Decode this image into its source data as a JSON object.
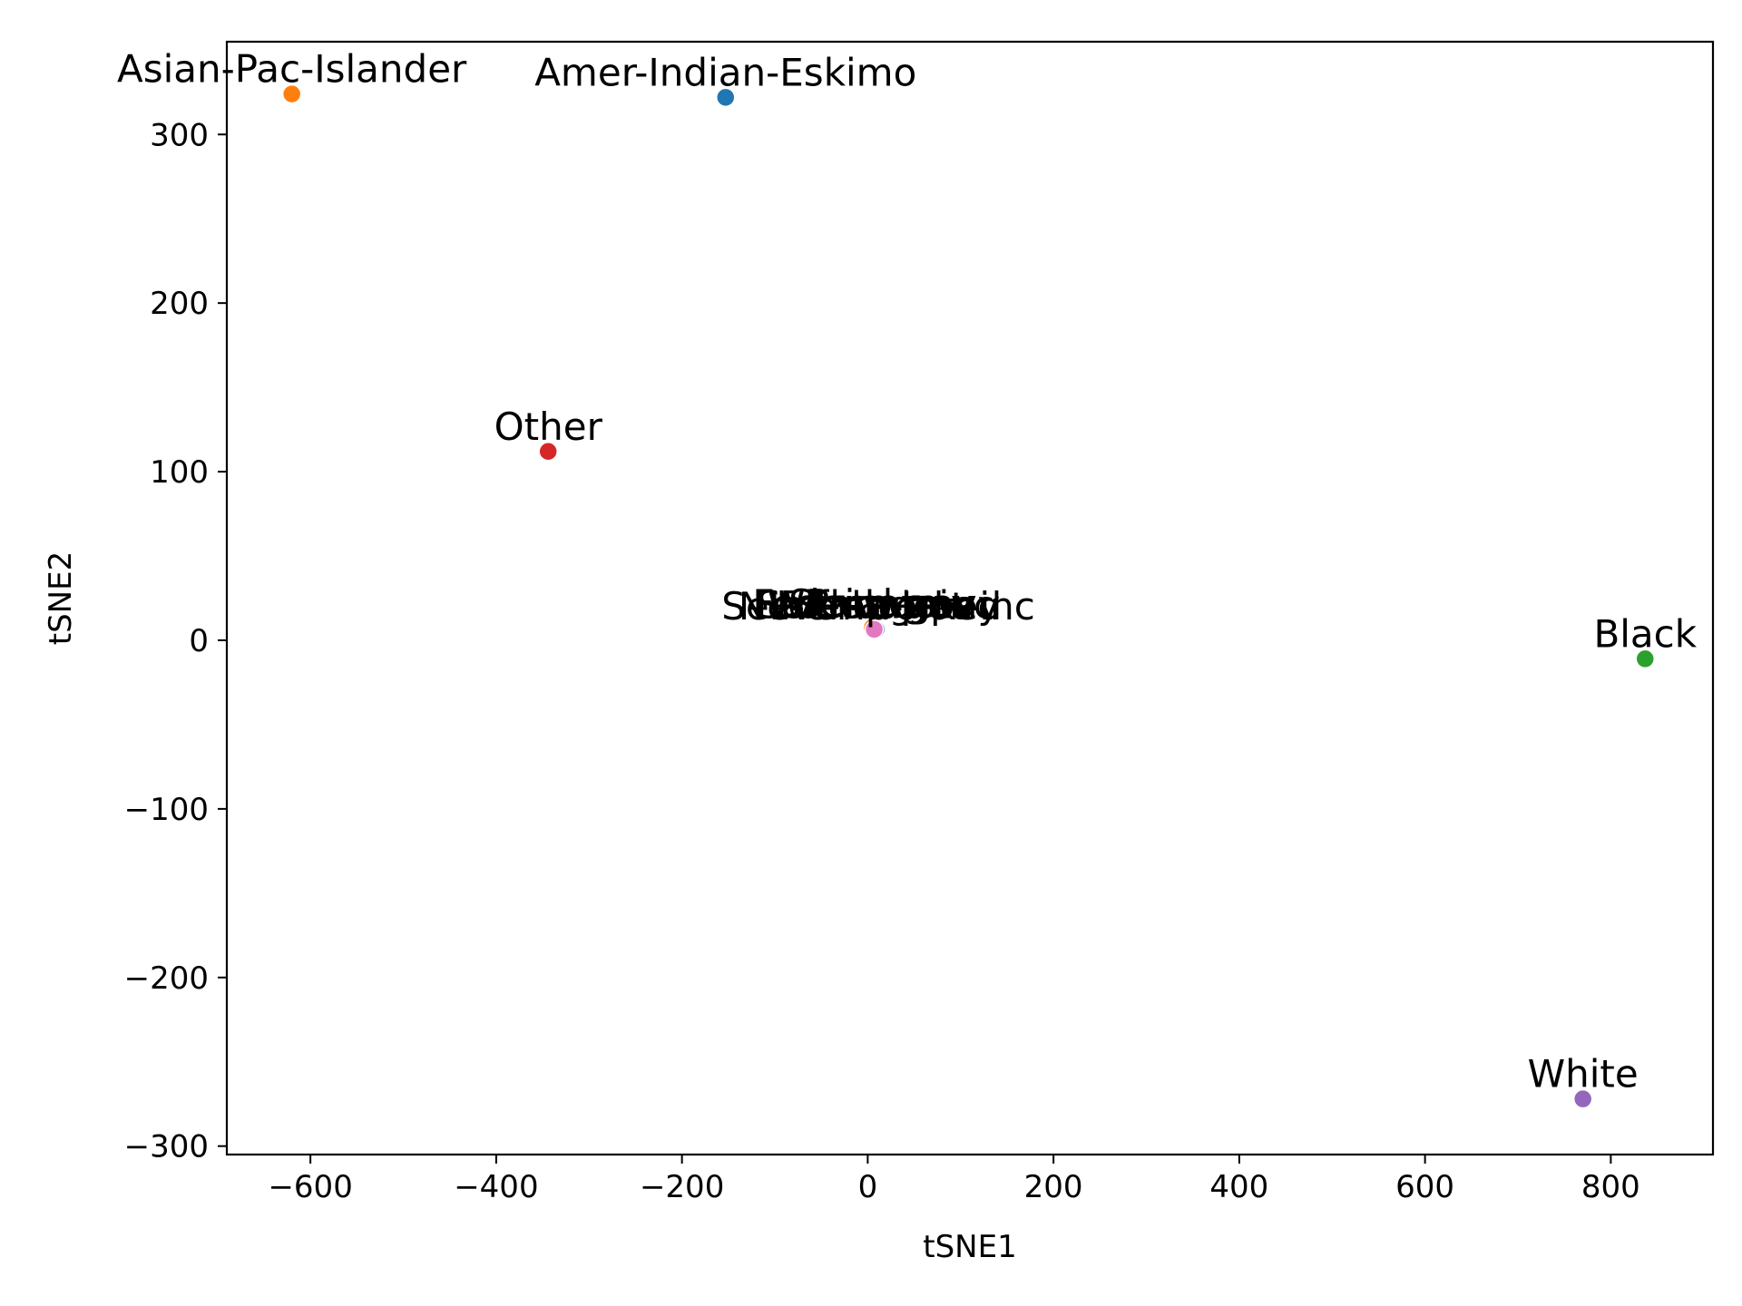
{
  "chart_data": {
    "type": "scatter",
    "title": "",
    "xlabel": "tSNE1",
    "ylabel": "tSNE2",
    "xlim": [
      -690,
      910
    ],
    "ylim": [
      -305,
      355
    ],
    "xticks": [
      -600,
      -400,
      -200,
      0,
      200,
      400,
      600,
      800
    ],
    "yticks": [
      -300,
      -200,
      -100,
      0,
      100,
      200,
      300
    ],
    "xtick_labels": [
      "−600",
      "−400",
      "−200",
      "0",
      "200",
      "400",
      "600",
      "800"
    ],
    "ytick_labels": [
      "−300",
      "−200",
      "−100",
      "0",
      "100",
      "200",
      "300"
    ],
    "grid": false,
    "legend": "none",
    "points": [
      {
        "label": "Amer-Indian-Eskimo",
        "x": -153,
        "y": 322,
        "color": "#1f77b4"
      },
      {
        "label": "Asian-Pac-Islander",
        "x": -620,
        "y": 324,
        "color": "#ff7f0e"
      },
      {
        "label": "Black",
        "x": 837,
        "y": -11,
        "color": "#2ca02c"
      },
      {
        "label": "Other",
        "x": -344,
        "y": 112,
        "color": "#d62728"
      },
      {
        "label": "White",
        "x": 770,
        "y": -272,
        "color": "#9467bd"
      }
    ],
    "cluster": {
      "x": 7,
      "y": 7,
      "labels": [
        "Federal-gov",
        "Local-gov",
        "Never-worked",
        "Private",
        "Self-emp-inc",
        "Self-emp-not-inc",
        "State-gov",
        "Without-pay"
      ],
      "colors": [
        "#8c564b",
        "#e377c2",
        "#7f7f7f",
        "#bcbd22",
        "#17becf",
        "#1f77b4",
        "#ff7f0e",
        "#e377c2"
      ]
    }
  }
}
